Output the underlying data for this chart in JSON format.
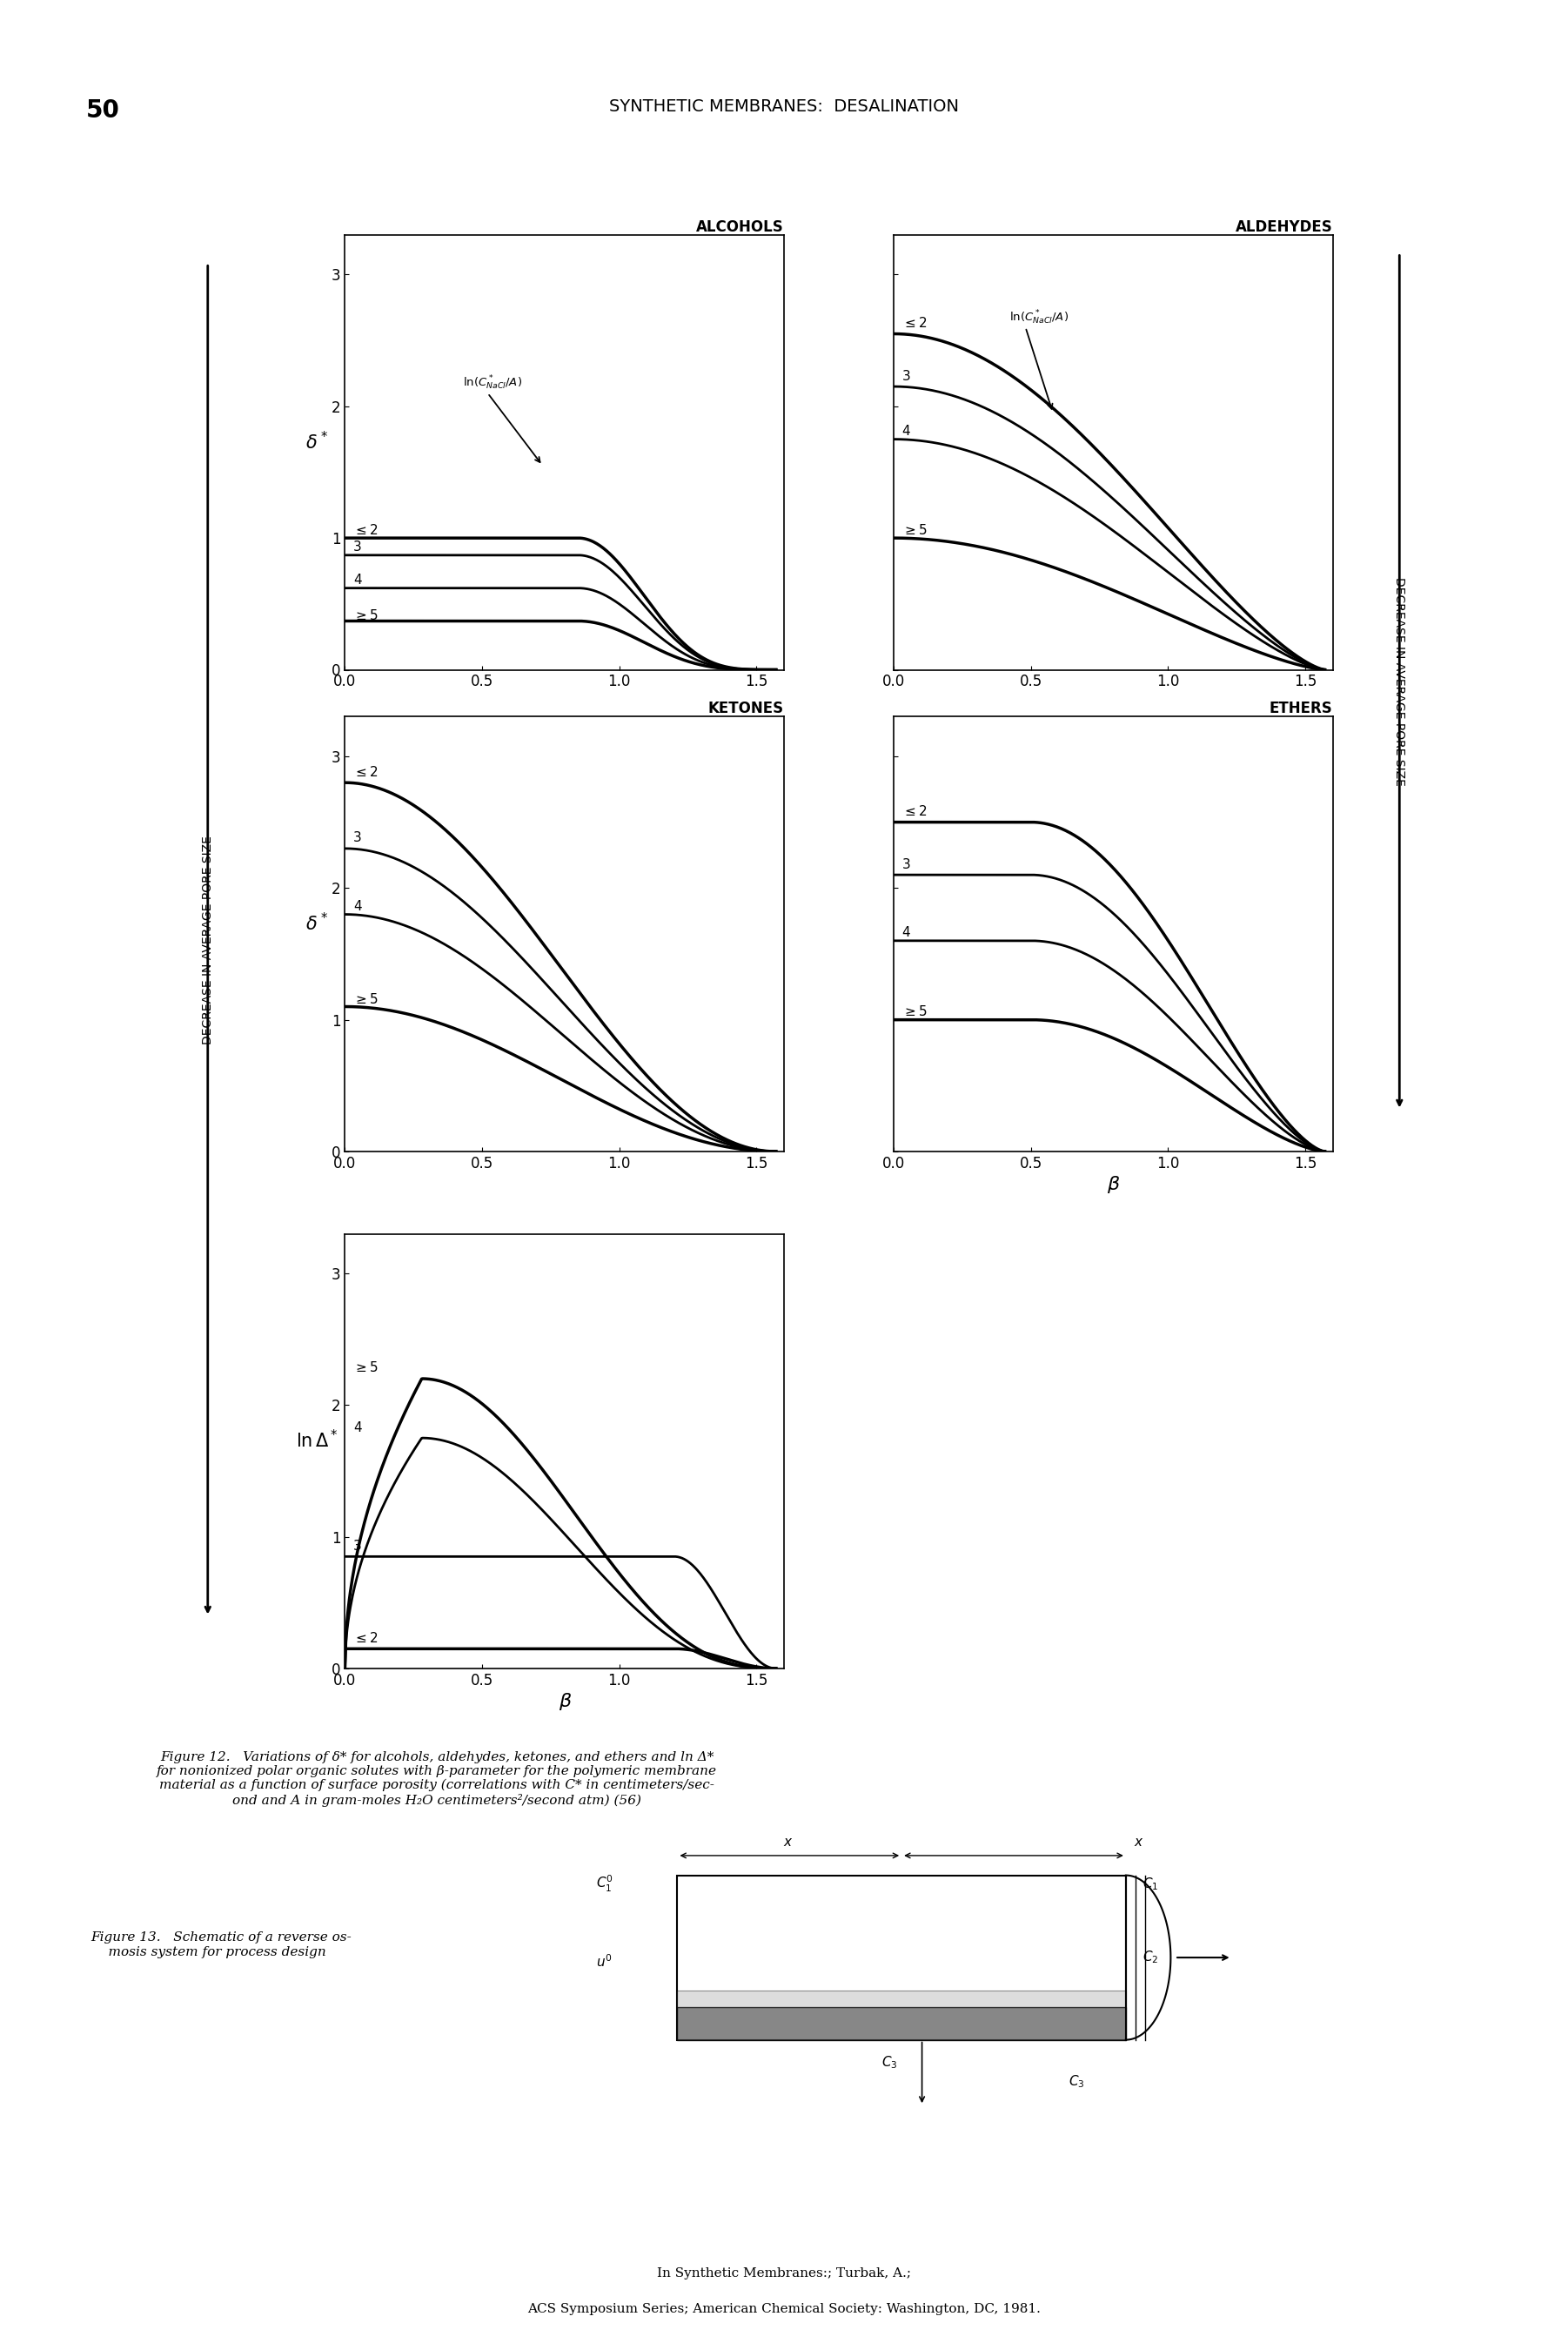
{
  "page_number": "50",
  "header_text": "SYNTHETIC MEMBRANES:  DESALINATION",
  "subplot_titles": [
    "ALCOHOLS",
    "ALDEHYDES",
    "KETONES",
    "ETHERS"
  ],
  "ylabel_delta": "δ*",
  "ylabel_lnA": "lnΔ*",
  "xlabel_beta": "β",
  "yticks": [
    0,
    1,
    2,
    3
  ],
  "xticks": [
    0,
    0.5,
    1.0,
    1.5
  ],
  "ylim": [
    0,
    3.3
  ],
  "xlim": [
    0,
    1.6
  ],
  "left_yaxis_label": "DECREASE IN AVERAGE PORE SIZE",
  "right_yaxis_label": "DECREASE IN AVERAGE PORE SIZE",
  "figure_caption_line1": "Figure 12.   Variations of δ* for alcohols, aldehydes, ketones, and ethers and ln Δ*",
  "figure_caption_line2": "for nonionized polar organic solutes with β-parameter for the polymeric membrane",
  "figure_caption_line3": "material as a function of surface porosity (correlations with C* in centimeters/sec-",
  "figure_caption_line4": "ond and A in gram-moles H₂O centimeters²/second atm) (56)",
  "fig13_label": "Figure 13.   Schematic of a reverse os-\n    mosis system for process design",
  "footer_line1": "In Synthetic Membranes:; Turbak, A.;",
  "footer_line2": "ACS Symposium Series; American Chemical Society: Washington, DC, 1981."
}
